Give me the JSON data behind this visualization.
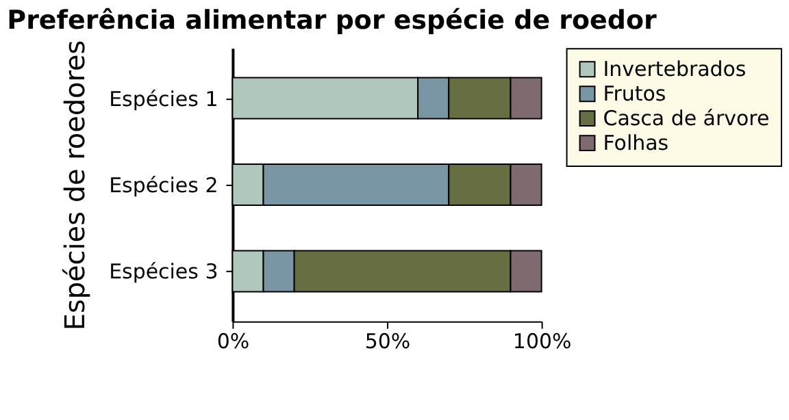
{
  "chart_data": {
    "type": "bar",
    "orientation": "horizontal",
    "stacked": true,
    "title": "Preferência alimentar por espécie de roedor",
    "ylabel": "Espécies de roedores",
    "categories": [
      "Espécies 1",
      "Espécies 2",
      "Espécies 3"
    ],
    "series": [
      {
        "name": "Invertebrados",
        "color": "#b0c8bb",
        "values": [
          60,
          10,
          10
        ]
      },
      {
        "name": "Frutos",
        "color": "#7896a3",
        "values": [
          10,
          60,
          10
        ]
      },
      {
        "name": "Casca de árvore",
        "color": "#676f42",
        "values": [
          20,
          20,
          70
        ]
      },
      {
        "name": "Folhas",
        "color": "#7f6a6f",
        "values": [
          10,
          10,
          10
        ]
      }
    ],
    "xlim": [
      0,
      100
    ],
    "xticks": [
      {
        "value": 0,
        "label": "0%"
      },
      {
        "value": 50,
        "label": "50%"
      },
      {
        "value": 100,
        "label": "100%"
      }
    ],
    "grid": false,
    "legend": "right"
  }
}
